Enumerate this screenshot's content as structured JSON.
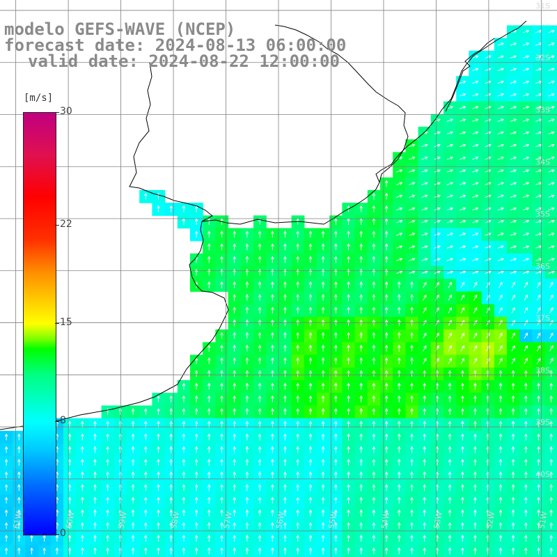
{
  "header": {
    "model": "modelo GEFS-WAVE (NCEP)",
    "forecast": "forecast date: 2024-08-13 06:00:00",
    "valid": "valid date: 2024-08-22 12:00:00"
  },
  "colorbar": {
    "unit": "[m/s]",
    "ticks": [
      {
        "label": "30",
        "value": 30
      },
      {
        "label": "22",
        "value": 22
      },
      {
        "label": "15",
        "value": 15
      },
      {
        "label": "8",
        "value": 8
      },
      {
        "label": "0",
        "value": 0
      }
    ],
    "range": [
      0,
      30
    ]
  },
  "map": {
    "lat_labels": [
      "31S",
      "32S",
      "33S",
      "34S",
      "35S",
      "36S",
      "37S",
      "38S",
      "39S",
      "40S"
    ],
    "lon_labels": [
      "61W",
      "60W",
      "59W",
      "58W",
      "57W",
      "56W",
      "55W",
      "54W",
      "53W",
      "52W",
      "51W"
    ],
    "lon_range": [
      -61.3,
      -50.7
    ],
    "lat_range": [
      -41.5,
      -30.8
    ],
    "colors": {
      "land": "#ffffff",
      "grid": "#7f7f7f",
      "coast": "#000000",
      "arrow": "#ffffff",
      "label": "#d8d8d8"
    }
  }
}
